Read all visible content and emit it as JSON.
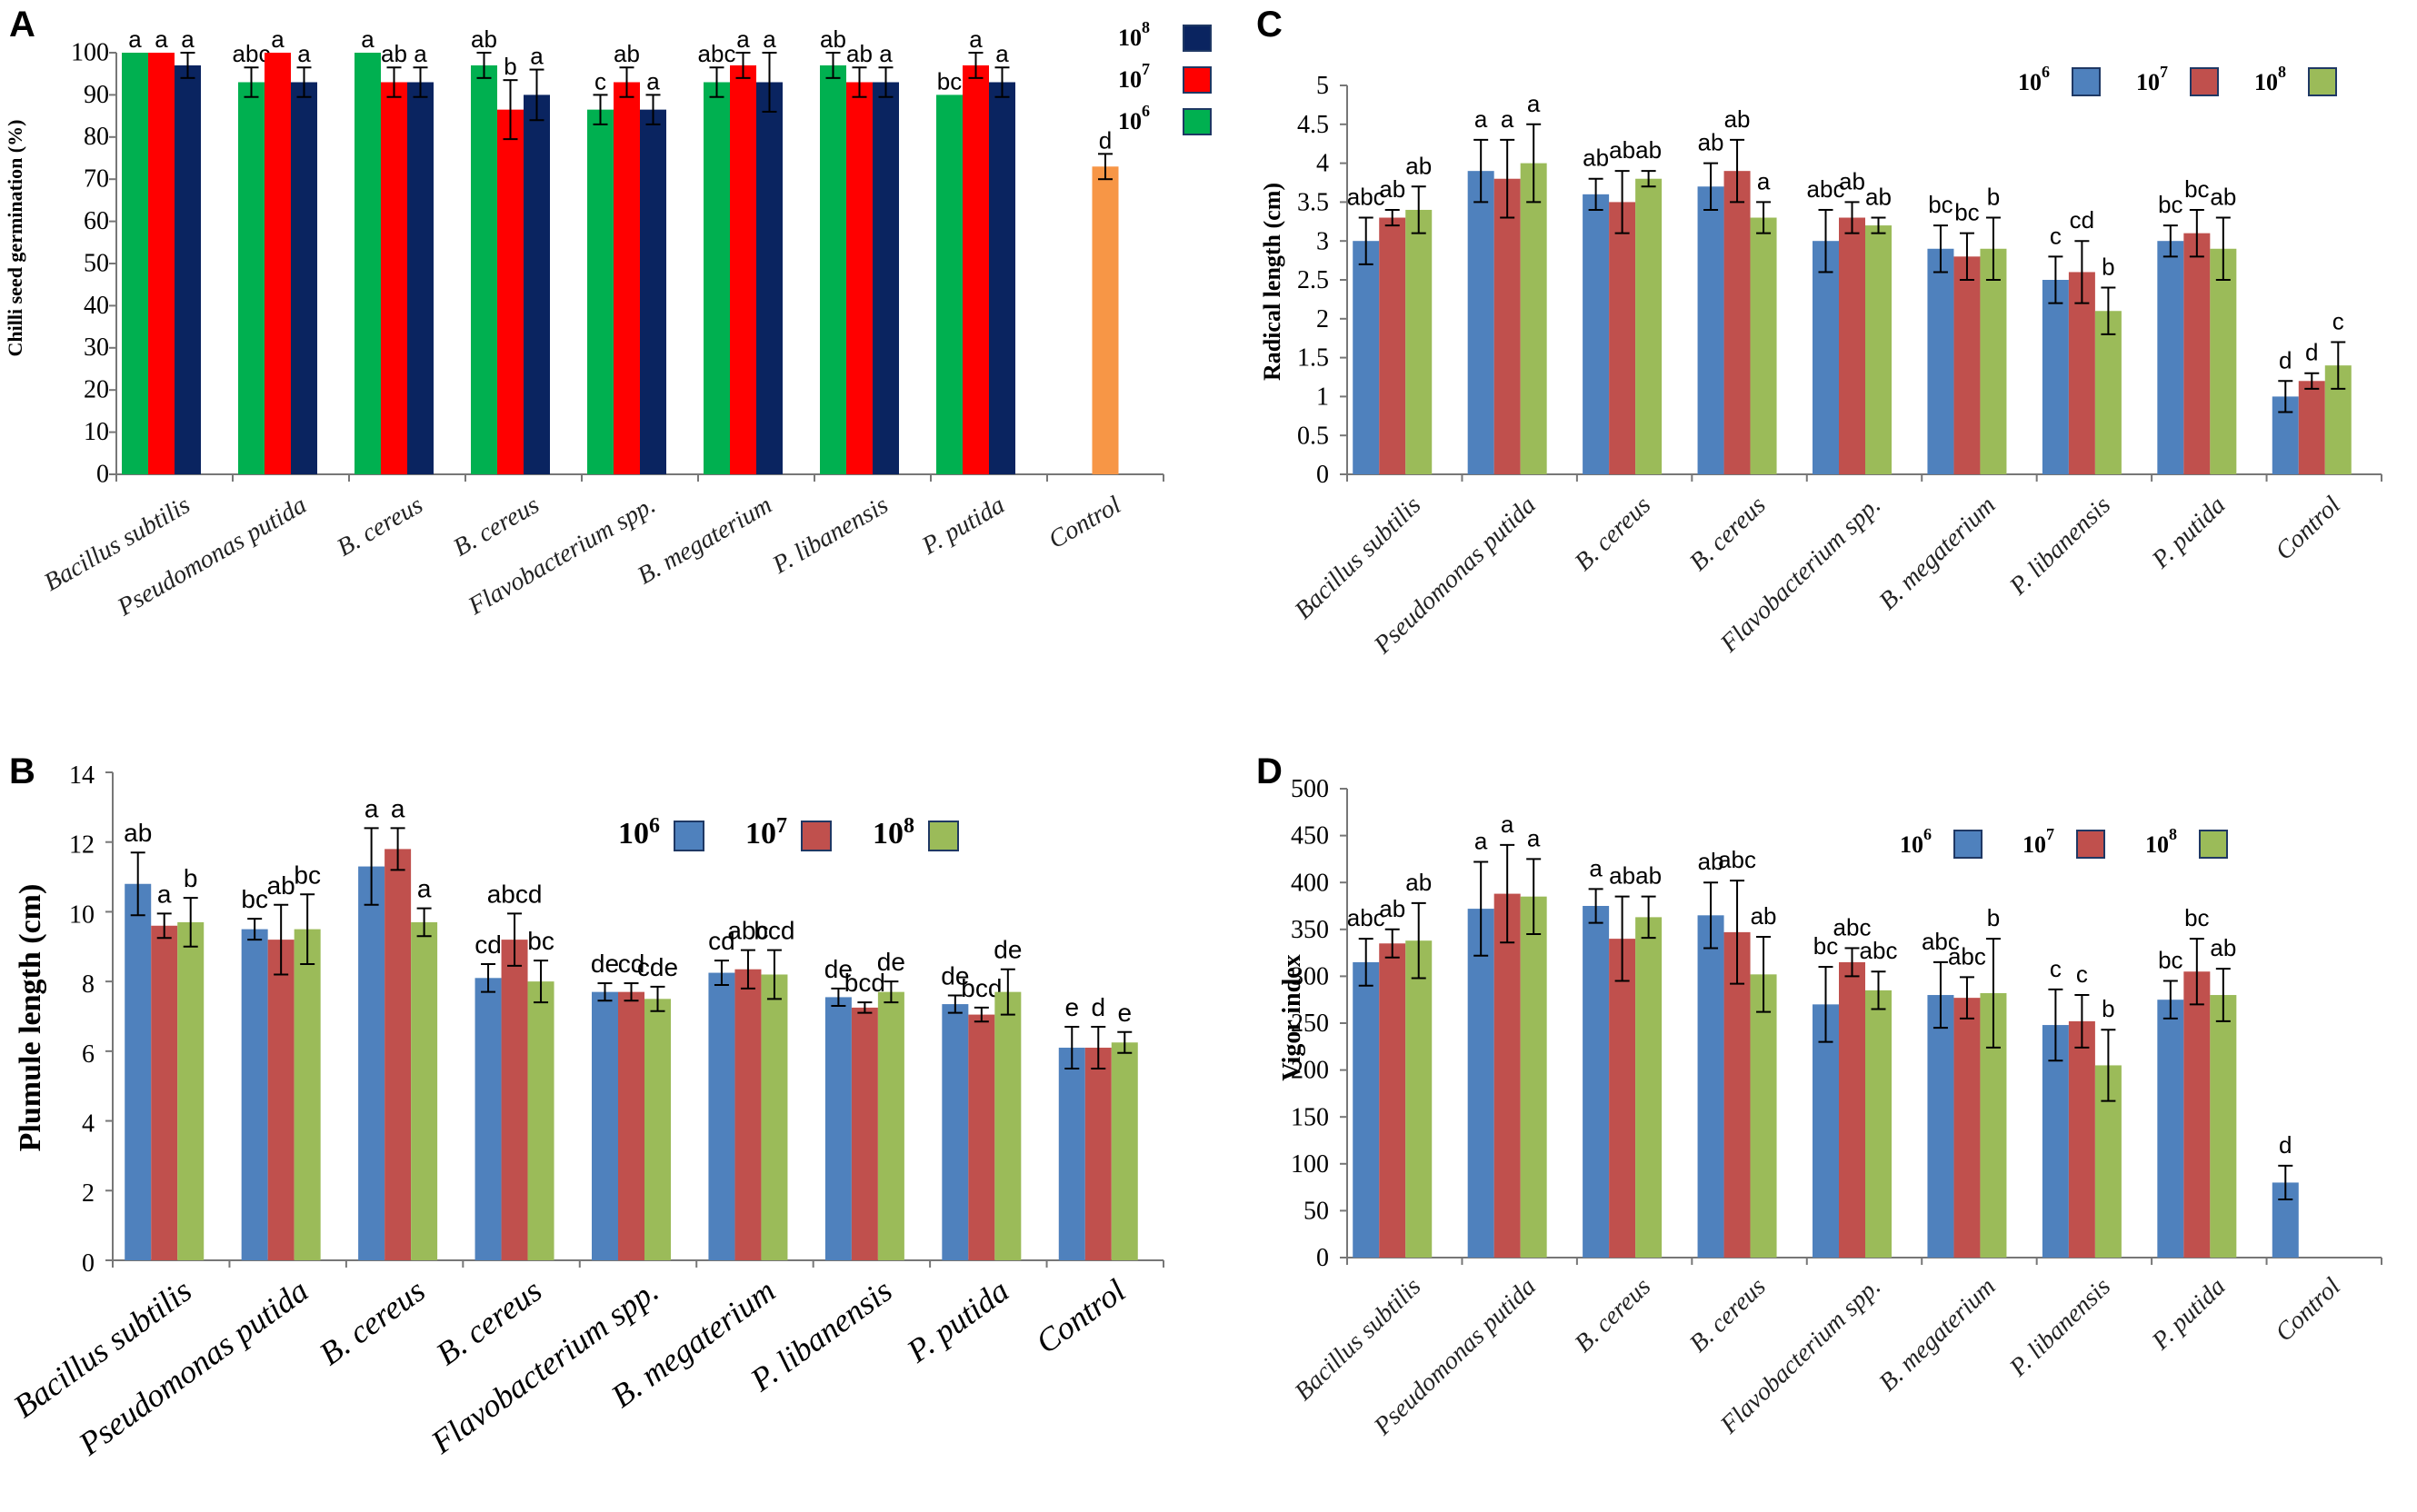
{
  "chart_data": [
    {
      "panel": "A",
      "type": "bar",
      "ylabel": "Chilli seed germination (%)",
      "ylim": [
        0,
        100
      ],
      "yticks": [
        0,
        10,
        20,
        30,
        40,
        50,
        60,
        70,
        80,
        90,
        100
      ],
      "categories": [
        "Bacillus subtilis",
        "Pseudomonas putida",
        "B. cereus",
        "B. cereus",
        "Flavobacterium spp.",
        "B. megaterium",
        "P. libanensis",
        "P. putida",
        "Control"
      ],
      "legend": [
        {
          "base": "10",
          "exp": "8",
          "color": "#0a2460"
        },
        {
          "base": "10",
          "exp": "7",
          "color": "#ff0000"
        },
        {
          "base": "10",
          "exp": "6",
          "color": "#00b050"
        }
      ],
      "series": [
        {
          "name": "10^6",
          "color": "#00b050",
          "values": [
            100,
            93,
            100,
            97,
            86.5,
            93,
            97,
            90,
            null
          ],
          "errors": [
            0,
            3.5,
            0,
            3,
            3.5,
            3.5,
            3,
            0,
            null
          ],
          "labels": [
            "a",
            "abc",
            "a",
            "ab",
            "c",
            "abc",
            "ab",
            "bc",
            ""
          ]
        },
        {
          "name": "10^7",
          "color": "#ff0000",
          "values": [
            100,
            100,
            93,
            86.5,
            93,
            97,
            93,
            97,
            null
          ],
          "errors": [
            0,
            0,
            3.5,
            7,
            3.5,
            3,
            3.5,
            3,
            null
          ],
          "labels": [
            "a",
            "a",
            "ab",
            "b",
            "ab",
            "a",
            "ab",
            "a",
            ""
          ]
        },
        {
          "name": "10^8",
          "color": "#0a2460",
          "values": [
            97,
            93,
            93,
            90,
            86.5,
            93,
            93,
            93,
            null
          ],
          "errors": [
            3,
            3.5,
            3.5,
            6,
            3.5,
            7,
            3.5,
            3.5,
            null
          ],
          "labels": [
            "a",
            "a",
            "a",
            "a",
            "a",
            "a",
            "a",
            "a",
            ""
          ]
        },
        {
          "name": "Control",
          "color": "#f79646",
          "values": [
            null,
            null,
            null,
            null,
            null,
            null,
            null,
            null,
            73
          ],
          "errors": [
            null,
            null,
            null,
            null,
            null,
            null,
            null,
            null,
            3
          ],
          "labels": [
            "",
            "",
            "",
            "",
            "",
            "",
            "",
            "",
            "d"
          ]
        }
      ]
    },
    {
      "panel": "B",
      "type": "bar",
      "ylabel": "Plumule length (cm)",
      "ylim": [
        0,
        14
      ],
      "yticks": [
        0,
        2,
        4,
        6,
        8,
        10,
        12,
        14
      ],
      "categories": [
        "Bacillus subtilis",
        "Pseudomonas putida",
        "B. cereus",
        "B. cereus",
        "Flavobacterium spp.",
        "B. megaterium",
        "P. libanensis",
        "P. putida",
        "Control"
      ],
      "legend": [
        {
          "base": "10",
          "exp": "6",
          "color": "#4f81bd"
        },
        {
          "base": "10",
          "exp": "7",
          "color": "#c0504d"
        },
        {
          "base": "10",
          "exp": "8",
          "color": "#9bbb59"
        }
      ],
      "series": [
        {
          "name": "10^6",
          "color": "#4f81bd",
          "values": [
            10.8,
            9.5,
            11.3,
            8.1,
            7.7,
            8.25,
            7.55,
            7.35,
            6.1
          ],
          "errors": [
            0.9,
            0.3,
            1.1,
            0.4,
            0.25,
            0.35,
            0.25,
            0.25,
            0.6
          ],
          "labels": [
            "ab",
            "bc",
            "a",
            "cd",
            "de",
            "cd",
            "de",
            "de",
            "e"
          ]
        },
        {
          "name": "10^7",
          "color": "#c0504d",
          "values": [
            9.6,
            9.2,
            11.8,
            9.2,
            7.7,
            8.35,
            7.25,
            7.05,
            6.1
          ],
          "errors": [
            0.35,
            1.0,
            0.6,
            0.75,
            0.25,
            0.55,
            0.15,
            0.2,
            0.6
          ],
          "labels": [
            "a",
            "ab",
            "a",
            "abcd",
            "cd",
            "abc",
            "bcd",
            "bcd",
            "d"
          ]
        },
        {
          "name": "10^8",
          "color": "#9bbb59",
          "values": [
            9.7,
            9.5,
            9.7,
            8.0,
            7.5,
            8.2,
            7.7,
            7.7,
            6.25
          ],
          "errors": [
            0.7,
            1.0,
            0.4,
            0.6,
            0.35,
            0.7,
            0.3,
            0.65,
            0.3
          ],
          "labels": [
            "b",
            "bc",
            "a",
            "bc",
            "cde",
            "bcd",
            "de",
            "de",
            "e"
          ]
        }
      ]
    },
    {
      "panel": "C",
      "type": "bar",
      "ylabel": "Radical length (cm)",
      "ylim": [
        0,
        5
      ],
      "yticks": [
        "0",
        "0.5",
        "1",
        "1.5",
        "2",
        "2.5",
        "3",
        "3.5",
        "4",
        "4.5",
        "5"
      ],
      "categories": [
        "Bacillus subtilis",
        "Pseudomonas putida",
        "B. cereus",
        "B. cereus",
        "Flavobacterium spp.",
        "B. megaterium",
        "P. libanensis",
        "P. putida",
        "Control"
      ],
      "legend": [
        {
          "base": "10",
          "exp": "6",
          "color": "#4f81bd"
        },
        {
          "base": "10",
          "exp": "7",
          "color": "#c0504d"
        },
        {
          "base": "10",
          "exp": "8",
          "color": "#9bbb59"
        }
      ],
      "series": [
        {
          "name": "10^6",
          "color": "#4f81bd",
          "values": [
            3.0,
            3.9,
            3.6,
            3.7,
            3.0,
            2.9,
            2.5,
            3.0,
            1.0
          ],
          "errors": [
            0.3,
            0.4,
            0.2,
            0.3,
            0.4,
            0.3,
            0.3,
            0.2,
            0.2
          ],
          "labels": [
            "abc",
            "a",
            "ab",
            "ab",
            "abc",
            "bc",
            "c",
            "bc",
            "d"
          ]
        },
        {
          "name": "10^7",
          "color": "#c0504d",
          "values": [
            3.3,
            3.8,
            3.5,
            3.9,
            3.3,
            2.8,
            2.6,
            3.1,
            1.2
          ],
          "errors": [
            0.1,
            0.5,
            0.4,
            0.4,
            0.2,
            0.3,
            0.4,
            0.3,
            0.1
          ],
          "labels": [
            "ab",
            "a",
            "ab",
            "ab",
            "ab",
            "bc",
            "cd",
            "bc",
            "d"
          ]
        },
        {
          "name": "10^8",
          "color": "#9bbb59",
          "values": [
            3.4,
            4.0,
            3.8,
            3.3,
            3.2,
            2.9,
            2.1,
            2.9,
            1.4
          ],
          "errors": [
            0.3,
            0.5,
            0.1,
            0.2,
            0.1,
            0.4,
            0.3,
            0.4,
            0.3
          ],
          "labels": [
            "ab",
            "a",
            "ab",
            "a",
            "ab",
            "b",
            "b",
            "ab",
            "c"
          ]
        }
      ]
    },
    {
      "panel": "D",
      "type": "bar",
      "ylabel": "Vigor index",
      "ylim": [
        0,
        500
      ],
      "yticks": [
        0,
        50,
        100,
        150,
        200,
        250,
        300,
        350,
        400,
        450,
        500
      ],
      "categories": [
        "Bacillus subtilis",
        "Pseudomonas putida",
        "B. cereus",
        "B. cereus",
        "Flavobacterium spp.",
        "B. megaterium",
        "P. libanensis",
        "P. putida",
        "Control"
      ],
      "legend": [
        {
          "base": "10",
          "exp": "6",
          "color": "#4f81bd"
        },
        {
          "base": "10",
          "exp": "7",
          "color": "#c0504d"
        },
        {
          "base": "10",
          "exp": "8",
          "color": "#9bbb59"
        }
      ],
      "series": [
        {
          "name": "10^6",
          "color": "#4f81bd",
          "values": [
            315,
            372,
            375,
            365,
            270,
            280,
            248,
            275,
            80
          ],
          "errors": [
            25,
            50,
            18,
            35,
            40,
            35,
            38,
            20,
            18
          ],
          "labels": [
            "abc",
            "a",
            "a",
            "ab",
            "bc",
            "abc",
            "c",
            "bc",
            "d"
          ]
        },
        {
          "name": "10^7",
          "color": "#c0504d",
          "values": [
            335,
            388,
            340,
            347,
            315,
            277,
            252,
            305,
            null
          ],
          "errors": [
            15,
            52,
            45,
            55,
            15,
            22,
            28,
            35,
            null
          ],
          "labels": [
            "ab",
            "a",
            "ab",
            "abc",
            "abc",
            "abc",
            "c",
            "bc",
            ""
          ]
        },
        {
          "name": "10^8",
          "color": "#9bbb59",
          "values": [
            338,
            385,
            363,
            302,
            285,
            282,
            205,
            280,
            null
          ],
          "errors": [
            40,
            40,
            22,
            40,
            20,
            58,
            38,
            28,
            null
          ],
          "labels": [
            "ab",
            "a",
            "ab",
            "ab",
            "abc",
            "b",
            "b",
            "ab",
            ""
          ]
        }
      ]
    }
  ]
}
